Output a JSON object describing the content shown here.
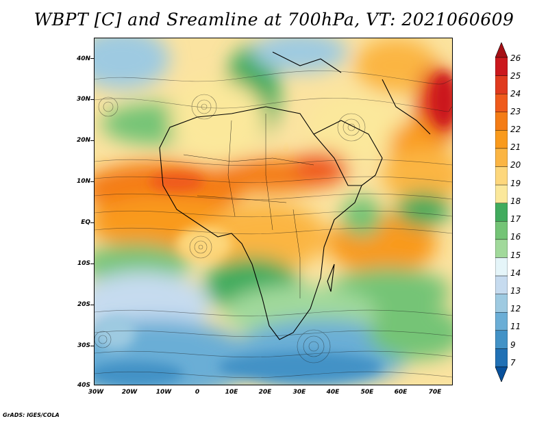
{
  "title": "WBPT [C] and Sreamline at 700hPa, VT: 2021060609",
  "credit": "GrADS: IGES/COLA",
  "lat_labels": [
    "40N",
    "30N",
    "20N",
    "10N",
    "EQ",
    "10S",
    "20S",
    "30S",
    "40S"
  ],
  "lon_labels": [
    "30W",
    "20W",
    "10W",
    "0",
    "10E",
    "20E",
    "30E",
    "40E",
    "50E",
    "60E",
    "70E"
  ],
  "colorbar": {
    "labels": [
      "26",
      "25",
      "24",
      "23",
      "22",
      "21",
      "20",
      "19",
      "18",
      "17",
      "16",
      "15",
      "14",
      "13",
      "12",
      "11",
      "9",
      "7"
    ],
    "colors": [
      "#a50f15",
      "#cb181d",
      "#e03a1e",
      "#ef5a1b",
      "#f47c15",
      "#f99a1c",
      "#fbb543",
      "#fdd77c",
      "#fbe89b",
      "#41ab5d",
      "#74c476",
      "#a1d99b",
      "#e5f5f9",
      "#c6dbef",
      "#9ecae1",
      "#6baed6",
      "#4292c6",
      "#2171b5",
      "#08519c"
    ]
  },
  "map": {
    "field": "wet-bulb potential temperature",
    "level": "700hPa",
    "lat_range": [
      -40,
      45
    ],
    "lon_range": [
      -30,
      75
    ]
  }
}
